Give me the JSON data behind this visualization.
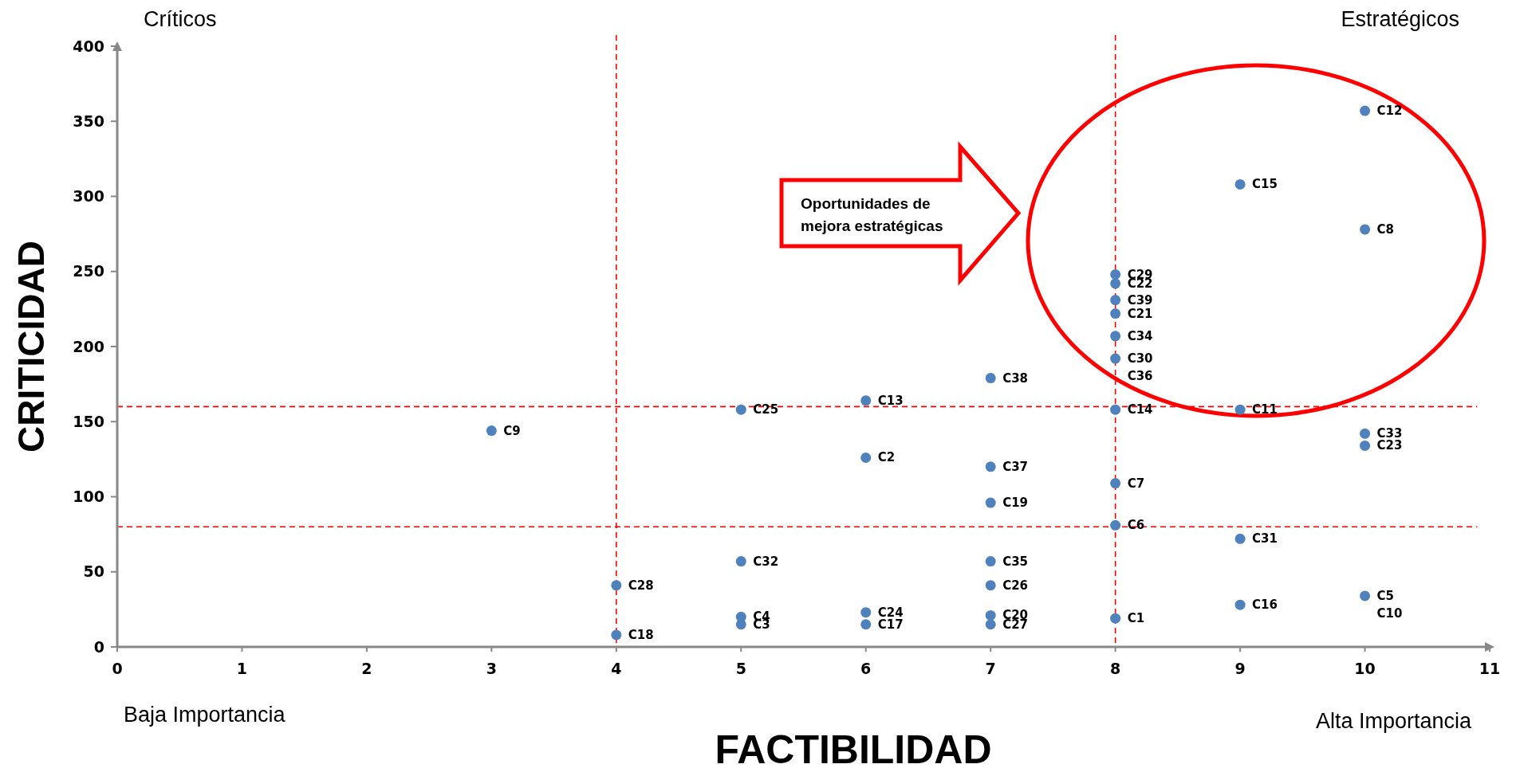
{
  "chart_data": {
    "type": "scatter",
    "xlabel": "FACTIBILIDAD",
    "ylabel": "CRITICIDAD",
    "xlim": [
      0,
      11
    ],
    "xticks": [
      0,
      1,
      2,
      3,
      4,
      5,
      6,
      7,
      8,
      9,
      10,
      11
    ],
    "ylim": [
      0,
      400
    ],
    "yticks": [
      0,
      50,
      100,
      150,
      200,
      250,
      300,
      350,
      400
    ],
    "marker": "circle",
    "series": [
      {
        "color": "#4f81bd",
        "x": [
          10,
          9,
          10,
          8,
          8,
          8,
          8,
          8,
          8,
          7,
          6,
          5,
          8,
          9,
          3,
          10,
          10,
          6,
          7,
          8,
          7,
          8,
          9,
          5,
          7,
          4,
          7,
          10,
          9,
          5,
          6,
          7,
          5,
          6,
          7,
          8,
          4
        ],
        "values": [
          357,
          308,
          278,
          248,
          242,
          231,
          222,
          207,
          192,
          179,
          164,
          158,
          158,
          158,
          144,
          142,
          134,
          126,
          120,
          109,
          96,
          81,
          72,
          57,
          57,
          41,
          41,
          34,
          28,
          20,
          23,
          21,
          15,
          15,
          15,
          19,
          8
        ]
      }
    ],
    "ref_lines": [
      {
        "axis": "x",
        "value": 4,
        "color": "#ff0000",
        "line_style": "dashed"
      },
      {
        "axis": "x",
        "value": 8,
        "color": "#ff0000",
        "line_style": "dashed"
      },
      {
        "axis": "y",
        "value": 160,
        "color": "#ff0000",
        "line_style": "dashed"
      },
      {
        "axis": "y",
        "value": 80,
        "color": "#ff0000",
        "line_style": "dashed"
      }
    ],
    "annotations": [
      "Críticos",
      "Estratégicos",
      "Baja Importancia",
      "Alta Importancia",
      "Oportunidades de mejora estratégicas",
      {
        "text": "C12",
        "x": 10,
        "y": 357
      },
      {
        "text": "C15",
        "x": 9,
        "y": 308
      },
      {
        "text": "C8",
        "x": 10,
        "y": 278
      },
      {
        "text": "C29",
        "x": 8,
        "y": 248
      },
      {
        "text": "C22",
        "x": 8,
        "y": 242
      },
      {
        "text": "C39",
        "x": 8,
        "y": 231
      },
      {
        "text": "C21",
        "x": 8,
        "y": 222
      },
      {
        "text": "C34",
        "x": 8,
        "y": 207
      },
      {
        "text": "C30",
        "x": 8,
        "y": 192
      },
      {
        "text": "C36",
        "x": 8,
        "y": 192
      },
      {
        "text": "C38",
        "x": 7,
        "y": 179
      },
      {
        "text": "C13",
        "x": 6,
        "y": 164
      },
      {
        "text": "C25",
        "x": 5,
        "y": 158
      },
      {
        "text": "C14",
        "x": 8,
        "y": 158
      },
      {
        "text": "C11",
        "x": 9,
        "y": 158
      },
      {
        "text": "C9",
        "x": 3,
        "y": 144
      },
      {
        "text": "C33",
        "x": 10,
        "y": 142
      },
      {
        "text": "C23",
        "x": 10,
        "y": 134
      },
      {
        "text": "C2",
        "x": 6,
        "y": 126
      },
      {
        "text": "C37",
        "x": 7,
        "y": 120
      },
      {
        "text": "C7",
        "x": 8,
        "y": 109
      },
      {
        "text": "C19",
        "x": 7,
        "y": 96
      },
      {
        "text": "C6",
        "x": 8,
        "y": 81
      },
      {
        "text": "C31",
        "x": 9,
        "y": 72
      },
      {
        "text": "C32",
        "x": 5,
        "y": 57
      },
      {
        "text": "C35",
        "x": 7,
        "y": 57
      },
      {
        "text": "C28",
        "x": 4,
        "y": 41
      },
      {
        "text": "C26",
        "x": 7,
        "y": 41
      },
      {
        "text": "C5",
        "x": 10,
        "y": 34
      },
      {
        "text": "C10",
        "x": 10,
        "y": 34
      },
      {
        "text": "C16",
        "x": 9,
        "y": 28
      },
      {
        "text": "C4",
        "x": 5,
        "y": 20
      },
      {
        "text": "C24",
        "x": 6,
        "y": 23
      },
      {
        "text": "C20",
        "x": 7,
        "y": 21
      },
      {
        "text": "C3",
        "x": 5,
        "y": 15
      },
      {
        "text": "C17",
        "x": 6,
        "y": 15
      },
      {
        "text": "C27",
        "x": 7,
        "y": 15
      },
      {
        "text": "C1",
        "x": 8,
        "y": 19
      },
      {
        "text": "C18",
        "x": 4,
        "y": 8
      }
    ]
  }
}
